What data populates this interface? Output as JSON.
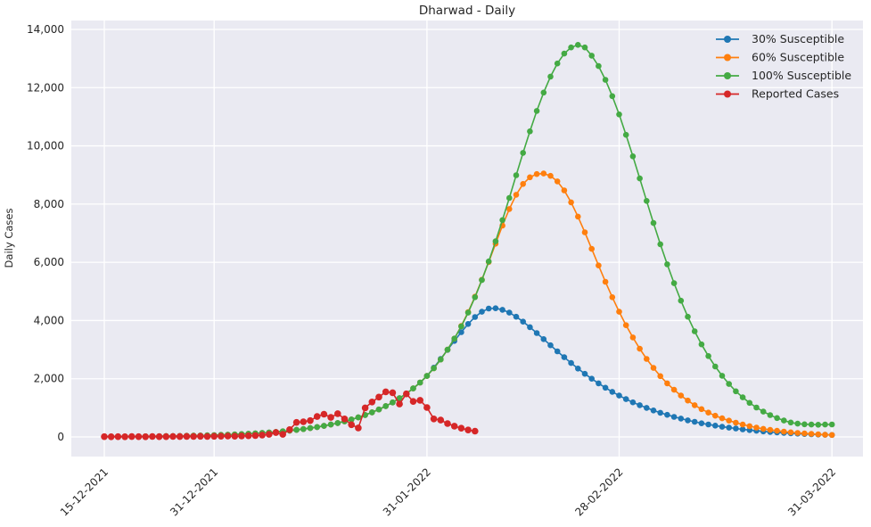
{
  "chart_data": {
    "type": "line",
    "title": "Dharwad - Daily",
    "xlabel": "",
    "ylabel": "Daily Cases",
    "ylim": [
      0,
      14000
    ],
    "grid": true,
    "legend_position": "upper right",
    "plot_bg_color": "#eaeaf2",
    "grid_color": "#ffffff",
    "x_tick_labels": [
      "15-12-2021",
      "31-12-2021",
      "31-01-2022",
      "28-02-2022",
      "31-03-2022"
    ],
    "x_tick_days": [
      0,
      16,
      47,
      75,
      106
    ],
    "y_ticks": [
      0,
      2000,
      4000,
      6000,
      8000,
      10000,
      12000,
      14000
    ],
    "x_unit": "days since 15-12-2021, daily points",
    "series": [
      {
        "name": "30% Susceptible",
        "color": "#1f77b4",
        "start_day": 0,
        "values": [
          10,
          11,
          13,
          14,
          16,
          18,
          20,
          22,
          25,
          28,
          31,
          35,
          39,
          44,
          49,
          55,
          62,
          69,
          78,
          87,
          98,
          109,
          122,
          137,
          154,
          172,
          193,
          216,
          242,
          271,
          304,
          340,
          381,
          427,
          478,
          536,
          600,
          672,
          753,
          844,
          945,
          1059,
          1186,
          1329,
          1489,
          1668,
          1869,
          2094,
          2380,
          2680,
          2990,
          3300,
          3600,
          3880,
          4120,
          4300,
          4410,
          4420,
          4370,
          4270,
          4130,
          3960,
          3770,
          3570,
          3360,
          3150,
          2940,
          2740,
          2540,
          2350,
          2170,
          2000,
          1840,
          1690,
          1550,
          1420,
          1300,
          1190,
          1090,
          1000,
          910,
          830,
          760,
          690,
          630,
          570,
          520,
          470,
          430,
          390,
          350,
          320,
          290,
          260,
          235,
          212,
          191,
          172,
          155,
          140,
          126,
          113,
          102,
          92,
          83,
          75,
          67
        ]
      },
      {
        "name": "60% Susceptible",
        "color": "#ff7f0e",
        "start_day": 0,
        "values": [
          10,
          11,
          13,
          14,
          16,
          18,
          20,
          22,
          25,
          28,
          31,
          35,
          39,
          44,
          49,
          55,
          62,
          69,
          78,
          87,
          98,
          109,
          122,
          137,
          154,
          172,
          193,
          216,
          242,
          271,
          304,
          340,
          381,
          427,
          478,
          536,
          600,
          672,
          753,
          844,
          945,
          1059,
          1186,
          1329,
          1489,
          1668,
          1869,
          2094,
          2360,
          2660,
          3000,
          3380,
          3810,
          4290,
          4820,
          5400,
          6010,
          6640,
          7260,
          7830,
          8320,
          8690,
          8920,
          9030,
          9050,
          8970,
          8780,
          8470,
          8060,
          7570,
          7030,
          6460,
          5890,
          5330,
          4800,
          4300,
          3840,
          3420,
          3030,
          2680,
          2370,
          2090,
          1840,
          1620,
          1420,
          1250,
          1090,
          955,
          835,
          730,
          640,
          560,
          490,
          425,
          370,
          322,
          280,
          243,
          211,
          183,
          159,
          138,
          120,
          104,
          90,
          78,
          68
        ]
      },
      {
        "name": "100% Susceptible",
        "color": "#44aa44",
        "start_day": 0,
        "values": [
          10,
          11,
          13,
          14,
          16,
          18,
          20,
          22,
          25,
          28,
          31,
          35,
          39,
          44,
          49,
          55,
          62,
          69,
          78,
          87,
          98,
          109,
          122,
          137,
          154,
          172,
          193,
          216,
          242,
          271,
          304,
          340,
          381,
          427,
          478,
          536,
          600,
          672,
          753,
          844,
          945,
          1059,
          1186,
          1329,
          1489,
          1668,
          1869,
          2094,
          2360,
          2660,
          3000,
          3380,
          3800,
          4270,
          4800,
          5390,
          6030,
          6720,
          7450,
          8210,
          8990,
          9760,
          10500,
          11200,
          11830,
          12380,
          12830,
          13170,
          13380,
          13470,
          13380,
          13100,
          12740,
          12270,
          11710,
          11080,
          10380,
          9640,
          8880,
          8110,
          7350,
          6620,
          5930,
          5280,
          4680,
          4130,
          3630,
          3180,
          2780,
          2420,
          2100,
          1820,
          1570,
          1360,
          1170,
          1010,
          870,
          750,
          650,
          565,
          495,
          455,
          435,
          425,
          420,
          425,
          430
        ]
      },
      {
        "name": "Reported Cases",
        "color": "#d62728",
        "start_day": 0,
        "values": [
          8,
          5,
          10,
          6,
          12,
          9,
          7,
          14,
          10,
          8,
          15,
          12,
          18,
          14,
          20,
          16,
          22,
          25,
          30,
          26,
          35,
          40,
          50,
          65,
          90,
          150,
          90,
          250,
          500,
          520,
          560,
          700,
          780,
          670,
          800,
          620,
          420,
          310,
          1000,
          1200,
          1370,
          1550,
          1520,
          1130,
          1480,
          1220,
          1260,
          1010,
          620,
          580,
          460,
          370,
          300,
          240,
          200
        ]
      }
    ]
  },
  "layout_text": {
    "title": "Dharwad - Daily",
    "ylabel": "Daily Cases"
  }
}
